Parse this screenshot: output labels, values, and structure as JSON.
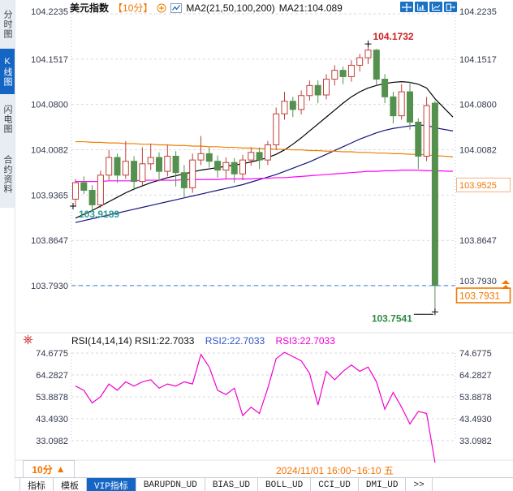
{
  "sidebar": {
    "items": [
      {
        "label": "分时图",
        "active": false
      },
      {
        "label": "K线图",
        "active": true
      },
      {
        "label": "闪电图",
        "active": false
      },
      {
        "label": "合约资料",
        "active": false
      }
    ]
  },
  "header": {
    "symbol": "美元指数",
    "period": "【10分】",
    "ma_group": "MA2(21,50,100,200)",
    "ma_current": "MA21:104.089",
    "toolbar_icons": [
      "pan-crosshair",
      "axis-bars",
      "axis-line",
      "exit-chart"
    ]
  },
  "rsi_header": {
    "part1": "RSI(14,14,14) RSI1:22.7033",
    "part2": "RSI2:22.7033",
    "part3": "RSI3:22.7033"
  },
  "footer": {
    "period_selector": "10分",
    "period_arrow": "▲",
    "date_range": "2024/11/01 16:00~16:10 五",
    "tabs": [
      {
        "label": "指标",
        "active": false
      },
      {
        "label": "模板",
        "active": false
      },
      {
        "label": "VIP指标",
        "active": true
      },
      {
        "label": "BARUPDN_UD",
        "active": false
      },
      {
        "label": "BIAS_UD",
        "active": false
      },
      {
        "label": "BOLL_UD",
        "active": false
      },
      {
        "label": "CCI_UD",
        "active": false
      },
      {
        "label": "DMI_UD",
        "active": false
      },
      {
        "label": ">>",
        "active": false
      }
    ]
  },
  "chart_data": {
    "type": "candlestick",
    "title": "美元指数 10分钟K线 + MA2(21,50,100,200) + RSI(14,14,14)",
    "main": {
      "y_ticks": [
        "104.2235",
        "104.1517",
        "104.0800",
        "104.0082",
        "103.9365",
        "103.8647",
        "103.7930"
      ],
      "y_range": [
        103.793,
        104.2235
      ],
      "candles": [
        [
          103.93,
          103.962,
          103.9189,
          103.956
        ],
        [
          103.956,
          103.966,
          103.938,
          103.944
        ],
        [
          103.944,
          103.952,
          103.91,
          103.921
        ],
        [
          103.921,
          103.975,
          103.916,
          103.968
        ],
        [
          103.968,
          104.008,
          103.96,
          103.996
        ],
        [
          103.996,
          104.002,
          103.956,
          103.968
        ],
        [
          103.968,
          104.022,
          103.962,
          103.99
        ],
        [
          103.99,
          103.998,
          103.944,
          103.958
        ],
        [
          103.958,
          104.012,
          103.952,
          103.986
        ],
        [
          103.986,
          104.018,
          103.976,
          103.996
        ],
        [
          103.996,
          104.004,
          103.958,
          103.974
        ],
        [
          103.974,
          104.016,
          103.966,
          103.998
        ],
        [
          103.998,
          104.006,
          103.95,
          103.972
        ],
        [
          103.972,
          103.984,
          103.932,
          103.948
        ],
        [
          103.948,
          104.002,
          103.94,
          103.992
        ],
        [
          103.992,
          104.03,
          103.984,
          104.002
        ],
        [
          104.002,
          104.012,
          103.98,
          103.99
        ],
        [
          103.99,
          103.999,
          103.964,
          103.976
        ],
        [
          103.976,
          103.996,
          103.962,
          103.988
        ],
        [
          103.988,
          103.995,
          103.956,
          103.97
        ],
        [
          103.97,
          104.0,
          103.96,
          103.992
        ],
        [
          103.992,
          104.012,
          103.983,
          104.004
        ],
        [
          104.004,
          104.012,
          103.978,
          103.992
        ],
        [
          103.992,
          104.022,
          103.984,
          104.016
        ],
        [
          104.016,
          104.075,
          104.008,
          104.065
        ],
        [
          104.065,
          104.1,
          104.056,
          104.085
        ],
        [
          104.085,
          104.092,
          104.06,
          104.072
        ],
        [
          104.072,
          104.102,
          104.064,
          104.094
        ],
        [
          104.094,
          104.118,
          104.086,
          104.11
        ],
        [
          104.11,
          104.118,
          104.082,
          104.095
        ],
        [
          104.095,
          104.128,
          104.088,
          104.12
        ],
        [
          104.12,
          104.142,
          104.11,
          104.134
        ],
        [
          104.134,
          104.14,
          104.112,
          104.124
        ],
        [
          104.124,
          104.15,
          104.116,
          104.142
        ],
        [
          104.142,
          104.16,
          104.132,
          104.154
        ],
        [
          104.154,
          104.1732,
          104.144,
          104.166
        ],
        [
          104.166,
          104.168,
          104.11,
          104.12
        ],
        [
          104.12,
          104.128,
          104.082,
          104.092
        ],
        [
          104.092,
          104.1,
          104.05,
          104.062
        ],
        [
          104.062,
          104.112,
          104.056,
          104.1
        ],
        [
          104.1,
          104.116,
          104.04,
          104.052
        ],
        [
          104.052,
          104.058,
          103.978,
          103.998
        ],
        [
          103.998,
          104.092,
          103.99,
          104.078
        ],
        [
          104.082,
          104.086,
          103.7541,
          103.7931
        ]
      ],
      "ma_series": [
        {
          "name": "MA21",
          "color": "#000000",
          "end_ext": 104.06,
          "values": [
            103.9,
            103.906,
            103.912,
            103.919,
            103.926,
            103.933,
            103.94,
            103.946,
            103.951,
            103.956,
            103.96,
            103.964,
            103.967,
            103.97,
            103.973,
            103.976,
            103.978,
            103.98,
            103.982,
            103.984,
            103.986,
            103.989,
            103.992,
            103.996,
            104.001,
            104.008,
            104.017,
            104.027,
            104.038,
            104.049,
            104.06,
            104.071,
            104.082,
            104.092,
            104.1,
            104.106,
            104.11,
            104.113,
            104.115,
            104.116,
            104.115,
            104.112,
            104.106,
            104.089
          ]
        },
        {
          "name": "MA50",
          "color": "#14147e",
          "end_ext": 104.038,
          "values": [
            103.893,
            103.896,
            103.899,
            103.902,
            103.905,
            103.908,
            103.911,
            103.914,
            103.917,
            103.92,
            103.923,
            103.926,
            103.929,
            103.932,
            103.935,
            103.938,
            103.941,
            103.944,
            103.947,
            103.95,
            103.953,
            103.957,
            103.961,
            103.965,
            103.969,
            103.974,
            103.979,
            103.984,
            103.989,
            103.995,
            104.001,
            104.007,
            104.013,
            104.019,
            104.025,
            104.03,
            104.035,
            104.039,
            104.042,
            104.044,
            104.046,
            104.047,
            104.047,
            104.043
          ]
        },
        {
          "name": "MA100",
          "color": "#f08000",
          "end_ext": 103.997,
          "values": [
            104.021,
            104.021,
            104.02,
            104.02,
            104.019,
            104.019,
            104.018,
            104.018,
            104.017,
            104.017,
            104.016,
            104.016,
            104.015,
            104.015,
            104.014,
            104.014,
            104.013,
            104.013,
            104.012,
            104.012,
            104.011,
            104.011,
            104.01,
            104.01,
            104.009,
            104.009,
            104.008,
            104.008,
            104.007,
            104.007,
            104.006,
            104.006,
            104.005,
            104.005,
            104.004,
            104.004,
            104.003,
            104.003,
            104.002,
            104.002,
            104.001,
            104.001,
            104.0,
            103.999
          ]
        },
        {
          "name": "MA200",
          "color": "#ff00ff",
          "end_ext": 103.974,
          "values": [
            103.958,
            103.958,
            103.958,
            103.958,
            103.959,
            103.959,
            103.959,
            103.959,
            103.96,
            103.96,
            103.96,
            103.96,
            103.96,
            103.961,
            103.961,
            103.961,
            103.961,
            103.961,
            103.962,
            103.962,
            103.962,
            103.962,
            103.963,
            103.963,
            103.964,
            103.964,
            103.965,
            103.966,
            103.967,
            103.968,
            103.969,
            103.97,
            103.971,
            103.972,
            103.973,
            103.974,
            103.974,
            103.975,
            103.975,
            103.976,
            103.976,
            103.976,
            103.975,
            103.975
          ]
        }
      ],
      "annotations": {
        "high_label": "104.1732",
        "high_value": 104.1732,
        "high_index": 36,
        "low_label": "103.7541",
        "low_value": 103.7541,
        "low_index": 44,
        "start_low_label": "103.9189",
        "start_low_value": 103.9189,
        "start_low_index": 1,
        "last_price_label": "103.7931",
        "last_price": 103.7931,
        "side_price_label": "103.9525",
        "side_price": 103.9525
      },
      "colors": {
        "up": "#c0403a",
        "down": "#55914e",
        "last_line": "#2e7fd8",
        "accent_orange": "#f07800",
        "teal_label": "#2e9e96",
        "green_label": "#2e8b44",
        "red_label": "#cc2222"
      }
    },
    "rsi": {
      "y_ticks": [
        "74.6775",
        "64.2827",
        "53.8878",
        "43.4930",
        "33.0982"
      ],
      "color": "#f000d0",
      "values": [
        59,
        57,
        51,
        54,
        60,
        57,
        61,
        59,
        61,
        62,
        58,
        60,
        59,
        61,
        60,
        74,
        68,
        57,
        55,
        58,
        45,
        49,
        46,
        58,
        72,
        75,
        73,
        71,
        65,
        50,
        66,
        62,
        66,
        69,
        66,
        68,
        61,
        48,
        56,
        49,
        41,
        47,
        46,
        22.7
      ]
    }
  }
}
